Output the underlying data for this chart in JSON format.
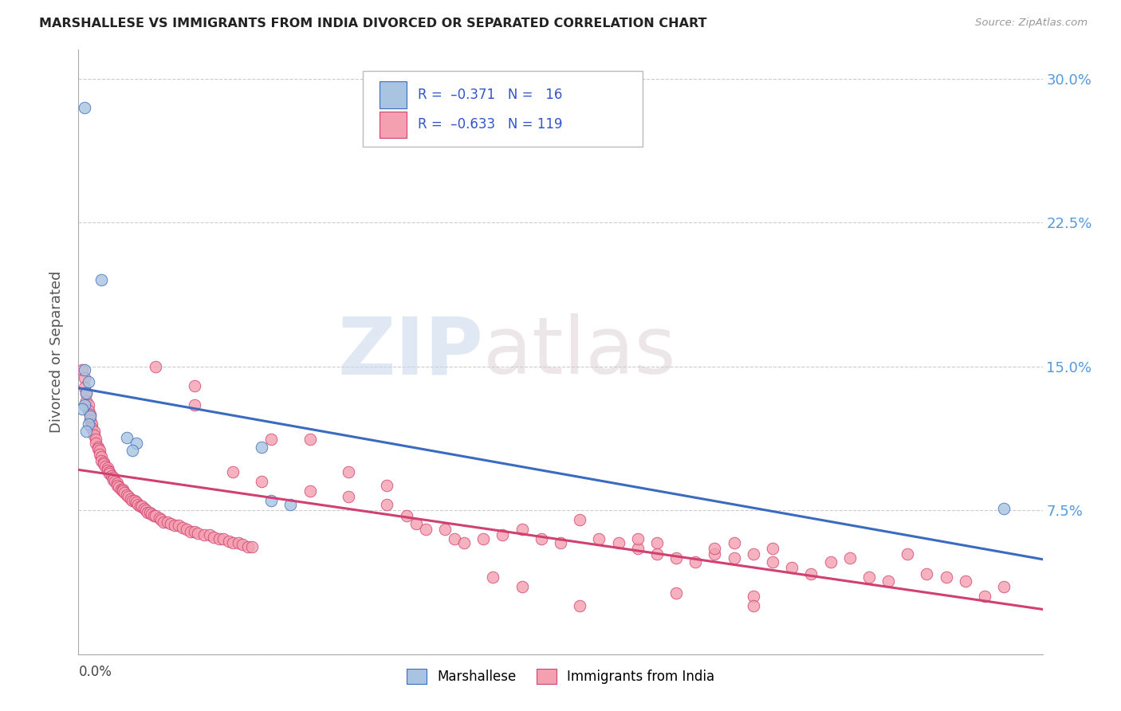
{
  "title": "MARSHALLESE VS IMMIGRANTS FROM INDIA DIVORCED OR SEPARATED CORRELATION CHART",
  "source": "Source: ZipAtlas.com",
  "ylabel": "Divorced or Separated",
  "ytick_values": [
    0,
    0.075,
    0.15,
    0.225,
    0.3
  ],
  "ytick_labels": [
    "",
    "7.5%",
    "15.0%",
    "22.5%",
    "30.0%"
  ],
  "xlim": [
    0,
    0.5
  ],
  "ylim": [
    0,
    0.315
  ],
  "legend_label1": "Marshallese",
  "legend_label2": "Immigrants from India",
  "color_blue": "#a8c4e0",
  "color_pink": "#f4a0b0",
  "line_color_blue": "#3a6bbf",
  "line_color_pink": "#d04070",
  "watermark_zip": "ZIP",
  "watermark_atlas": "atlas",
  "blue_points": [
    [
      0.003,
      0.285
    ],
    [
      0.012,
      0.195
    ],
    [
      0.003,
      0.148
    ],
    [
      0.005,
      0.142
    ],
    [
      0.004,
      0.136
    ],
    [
      0.003,
      0.13
    ],
    [
      0.002,
      0.128
    ],
    [
      0.006,
      0.124
    ],
    [
      0.005,
      0.12
    ],
    [
      0.004,
      0.116
    ],
    [
      0.025,
      0.113
    ],
    [
      0.03,
      0.11
    ],
    [
      0.028,
      0.106
    ],
    [
      0.095,
      0.108
    ],
    [
      0.1,
      0.08
    ],
    [
      0.11,
      0.078
    ],
    [
      0.48,
      0.076
    ]
  ],
  "pink_points": [
    [
      0.002,
      0.148
    ],
    [
      0.003,
      0.144
    ],
    [
      0.003,
      0.139
    ],
    [
      0.004,
      0.136
    ],
    [
      0.004,
      0.132
    ],
    [
      0.005,
      0.13
    ],
    [
      0.005,
      0.127
    ],
    [
      0.006,
      0.125
    ],
    [
      0.006,
      0.122
    ],
    [
      0.007,
      0.12
    ],
    [
      0.007,
      0.118
    ],
    [
      0.008,
      0.116
    ],
    [
      0.008,
      0.114
    ],
    [
      0.009,
      0.112
    ],
    [
      0.009,
      0.11
    ],
    [
      0.01,
      0.108
    ],
    [
      0.01,
      0.107
    ],
    [
      0.011,
      0.106
    ],
    [
      0.011,
      0.104
    ],
    [
      0.012,
      0.103
    ],
    [
      0.012,
      0.101
    ],
    [
      0.013,
      0.1
    ],
    [
      0.013,
      0.099
    ],
    [
      0.014,
      0.098
    ],
    [
      0.015,
      0.097
    ],
    [
      0.015,
      0.096
    ],
    [
      0.016,
      0.095
    ],
    [
      0.016,
      0.094
    ],
    [
      0.017,
      0.093
    ],
    [
      0.018,
      0.092
    ],
    [
      0.018,
      0.091
    ],
    [
      0.019,
      0.09
    ],
    [
      0.02,
      0.089
    ],
    [
      0.02,
      0.088
    ],
    [
      0.021,
      0.087
    ],
    [
      0.022,
      0.086
    ],
    [
      0.023,
      0.086
    ],
    [
      0.023,
      0.085
    ],
    [
      0.024,
      0.084
    ],
    [
      0.025,
      0.083
    ],
    [
      0.026,
      0.082
    ],
    [
      0.027,
      0.081
    ],
    [
      0.028,
      0.08
    ],
    [
      0.029,
      0.08
    ],
    [
      0.03,
      0.079
    ],
    [
      0.031,
      0.078
    ],
    [
      0.032,
      0.077
    ],
    [
      0.033,
      0.077
    ],
    [
      0.034,
      0.076
    ],
    [
      0.035,
      0.075
    ],
    [
      0.036,
      0.074
    ],
    [
      0.037,
      0.074
    ],
    [
      0.038,
      0.073
    ],
    [
      0.039,
      0.072
    ],
    [
      0.04,
      0.072
    ],
    [
      0.042,
      0.071
    ],
    [
      0.043,
      0.07
    ],
    [
      0.044,
      0.069
    ],
    [
      0.046,
      0.069
    ],
    [
      0.048,
      0.068
    ],
    [
      0.05,
      0.067
    ],
    [
      0.052,
      0.067
    ],
    [
      0.054,
      0.066
    ],
    [
      0.056,
      0.065
    ],
    [
      0.058,
      0.064
    ],
    [
      0.06,
      0.064
    ],
    [
      0.062,
      0.063
    ],
    [
      0.065,
      0.062
    ],
    [
      0.068,
      0.062
    ],
    [
      0.07,
      0.061
    ],
    [
      0.073,
      0.06
    ],
    [
      0.075,
      0.06
    ],
    [
      0.078,
      0.059
    ],
    [
      0.08,
      0.058
    ],
    [
      0.083,
      0.058
    ],
    [
      0.085,
      0.057
    ],
    [
      0.088,
      0.056
    ],
    [
      0.09,
      0.056
    ],
    [
      0.04,
      0.15
    ],
    [
      0.06,
      0.14
    ],
    [
      0.06,
      0.13
    ],
    [
      0.1,
      0.112
    ],
    [
      0.12,
      0.112
    ],
    [
      0.14,
      0.095
    ],
    [
      0.16,
      0.088
    ],
    [
      0.08,
      0.095
    ],
    [
      0.095,
      0.09
    ],
    [
      0.12,
      0.085
    ],
    [
      0.14,
      0.082
    ],
    [
      0.16,
      0.078
    ],
    [
      0.17,
      0.072
    ],
    [
      0.175,
      0.068
    ],
    [
      0.18,
      0.065
    ],
    [
      0.19,
      0.065
    ],
    [
      0.195,
      0.06
    ],
    [
      0.2,
      0.058
    ],
    [
      0.21,
      0.06
    ],
    [
      0.22,
      0.062
    ],
    [
      0.23,
      0.065
    ],
    [
      0.24,
      0.06
    ],
    [
      0.25,
      0.058
    ],
    [
      0.26,
      0.07
    ],
    [
      0.27,
      0.06
    ],
    [
      0.28,
      0.058
    ],
    [
      0.29,
      0.055
    ],
    [
      0.29,
      0.06
    ],
    [
      0.3,
      0.058
    ],
    [
      0.3,
      0.052
    ],
    [
      0.31,
      0.05
    ],
    [
      0.32,
      0.048
    ],
    [
      0.33,
      0.052
    ],
    [
      0.33,
      0.055
    ],
    [
      0.34,
      0.058
    ],
    [
      0.34,
      0.05
    ],
    [
      0.35,
      0.052
    ],
    [
      0.36,
      0.055
    ],
    [
      0.36,
      0.048
    ],
    [
      0.37,
      0.045
    ],
    [
      0.38,
      0.042
    ],
    [
      0.39,
      0.048
    ],
    [
      0.4,
      0.05
    ],
    [
      0.41,
      0.04
    ],
    [
      0.42,
      0.038
    ],
    [
      0.43,
      0.052
    ],
    [
      0.44,
      0.042
    ],
    [
      0.45,
      0.04
    ],
    [
      0.46,
      0.038
    ],
    [
      0.47,
      0.03
    ],
    [
      0.48,
      0.035
    ],
    [
      0.215,
      0.04
    ],
    [
      0.23,
      0.035
    ],
    [
      0.31,
      0.032
    ],
    [
      0.35,
      0.03
    ],
    [
      0.26,
      0.025
    ],
    [
      0.35,
      0.025
    ]
  ]
}
